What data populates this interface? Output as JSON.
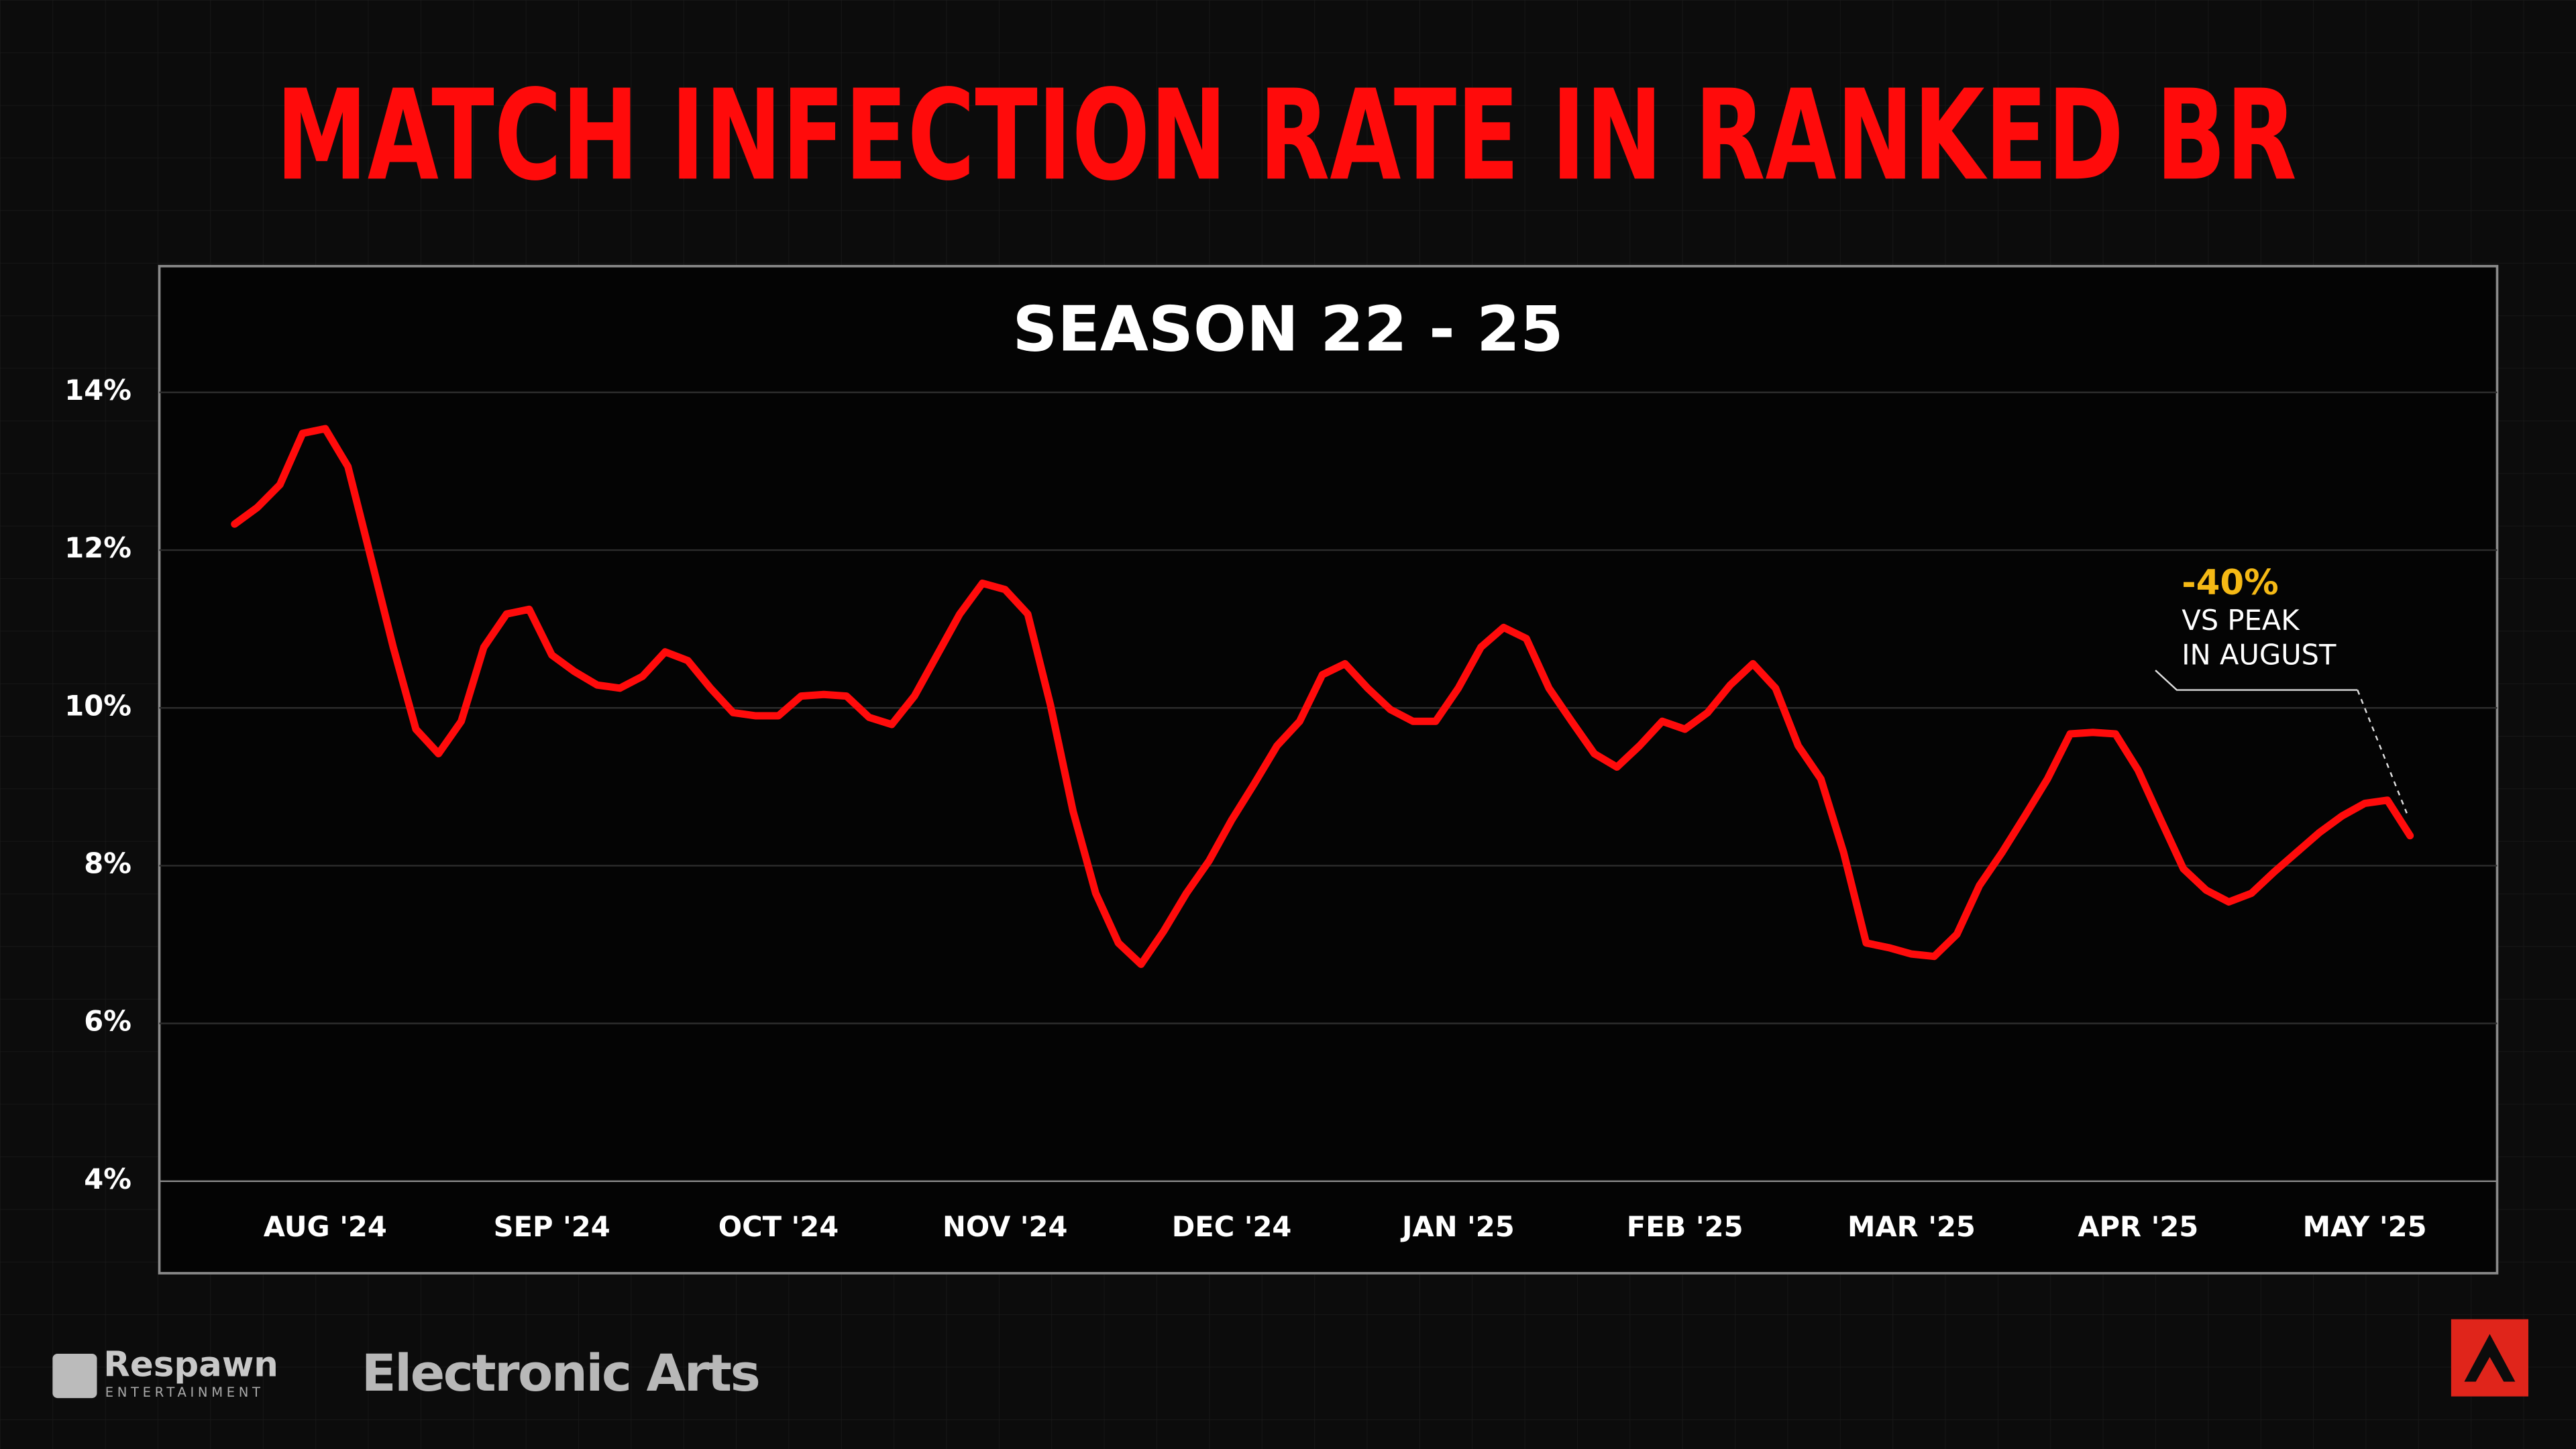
{
  "chart_data": {
    "type": "line",
    "title": "MATCH INFECTION RATE IN RANKED BR",
    "subtitle": "SEASON 22 - 25",
    "categories": [
      null,
      null,
      null,
      null,
      "AUG '24",
      null,
      null,
      null,
      null,
      null,
      null,
      null,
      null,
      null,
      "SEP '24",
      null,
      null,
      null,
      null,
      null,
      null,
      null,
      null,
      null,
      "OCT '24",
      null,
      null,
      null,
      null,
      null,
      null,
      null,
      null,
      null,
      "NOV '24",
      null,
      null,
      null,
      null,
      null,
      null,
      null,
      null,
      null,
      "DEC '24",
      null,
      null,
      null,
      null,
      null,
      null,
      null,
      null,
      null,
      "JAN '25",
      null,
      null,
      null,
      null,
      null,
      null,
      null,
      null,
      null,
      "FEB '25",
      null,
      null,
      null,
      null,
      null,
      null,
      null,
      null,
      null,
      "MAR '25",
      null,
      null,
      null,
      null,
      null,
      null,
      null,
      null,
      null,
      "APR '25",
      null,
      null,
      null,
      null,
      null,
      null,
      null,
      null,
      null,
      "MAY '25",
      null,
      null
    ],
    "values": [
      12.33,
      12.54,
      12.83,
      13.48,
      13.54,
      13.06,
      11.92,
      10.77,
      9.73,
      9.42,
      9.83,
      10.77,
      11.19,
      11.25,
      10.67,
      10.46,
      10.29,
      10.25,
      10.4,
      10.71,
      10.6,
      10.25,
      9.94,
      9.9,
      9.9,
      10.15,
      10.17,
      10.15,
      9.88,
      9.79,
      10.15,
      10.67,
      11.19,
      11.58,
      11.5,
      11.19,
      10.04,
      8.69,
      7.65,
      7.02,
      6.75,
      7.17,
      7.65,
      8.06,
      8.58,
      9.04,
      9.52,
      9.83,
      10.42,
      10.56,
      10.25,
      9.98,
      9.83,
      9.83,
      10.25,
      10.77,
      11.02,
      10.88,
      10.25,
      9.83,
      9.42,
      9.25,
      9.52,
      9.83,
      9.73,
      9.94,
      10.29,
      10.56,
      10.25,
      9.52,
      9.1,
      8.17,
      7.02,
      6.96,
      6.88,
      6.85,
      7.13,
      7.75,
      8.17,
      8.63,
      9.1,
      9.67,
      9.69,
      9.67,
      9.21,
      8.58,
      7.96,
      7.69,
      7.54,
      7.65,
      7.92,
      8.17,
      8.42,
      8.63,
      8.79,
      8.83,
      8.38
    ],
    "color": "#ff0b0b",
    "ylim": [
      4,
      15.6
    ],
    "yticks": [
      {
        "value": 4,
        "label": "4%"
      },
      {
        "value": 6,
        "label": "6%"
      },
      {
        "value": 8,
        "label": "8%"
      },
      {
        "value": 10,
        "label": "10%"
      },
      {
        "value": 12,
        "label": "12%"
      },
      {
        "value": 14,
        "label": "14%"
      }
    ],
    "grid": true,
    "annotation": {
      "headline": "-40%",
      "lines": [
        "VS PEAK",
        "IN AUGUST"
      ],
      "headline_color": "#f5b915"
    }
  },
  "branding": {
    "respawn": "Respawn",
    "respawn_sub": "ENTERTAINMENT",
    "publisher": "Electronic Arts"
  }
}
